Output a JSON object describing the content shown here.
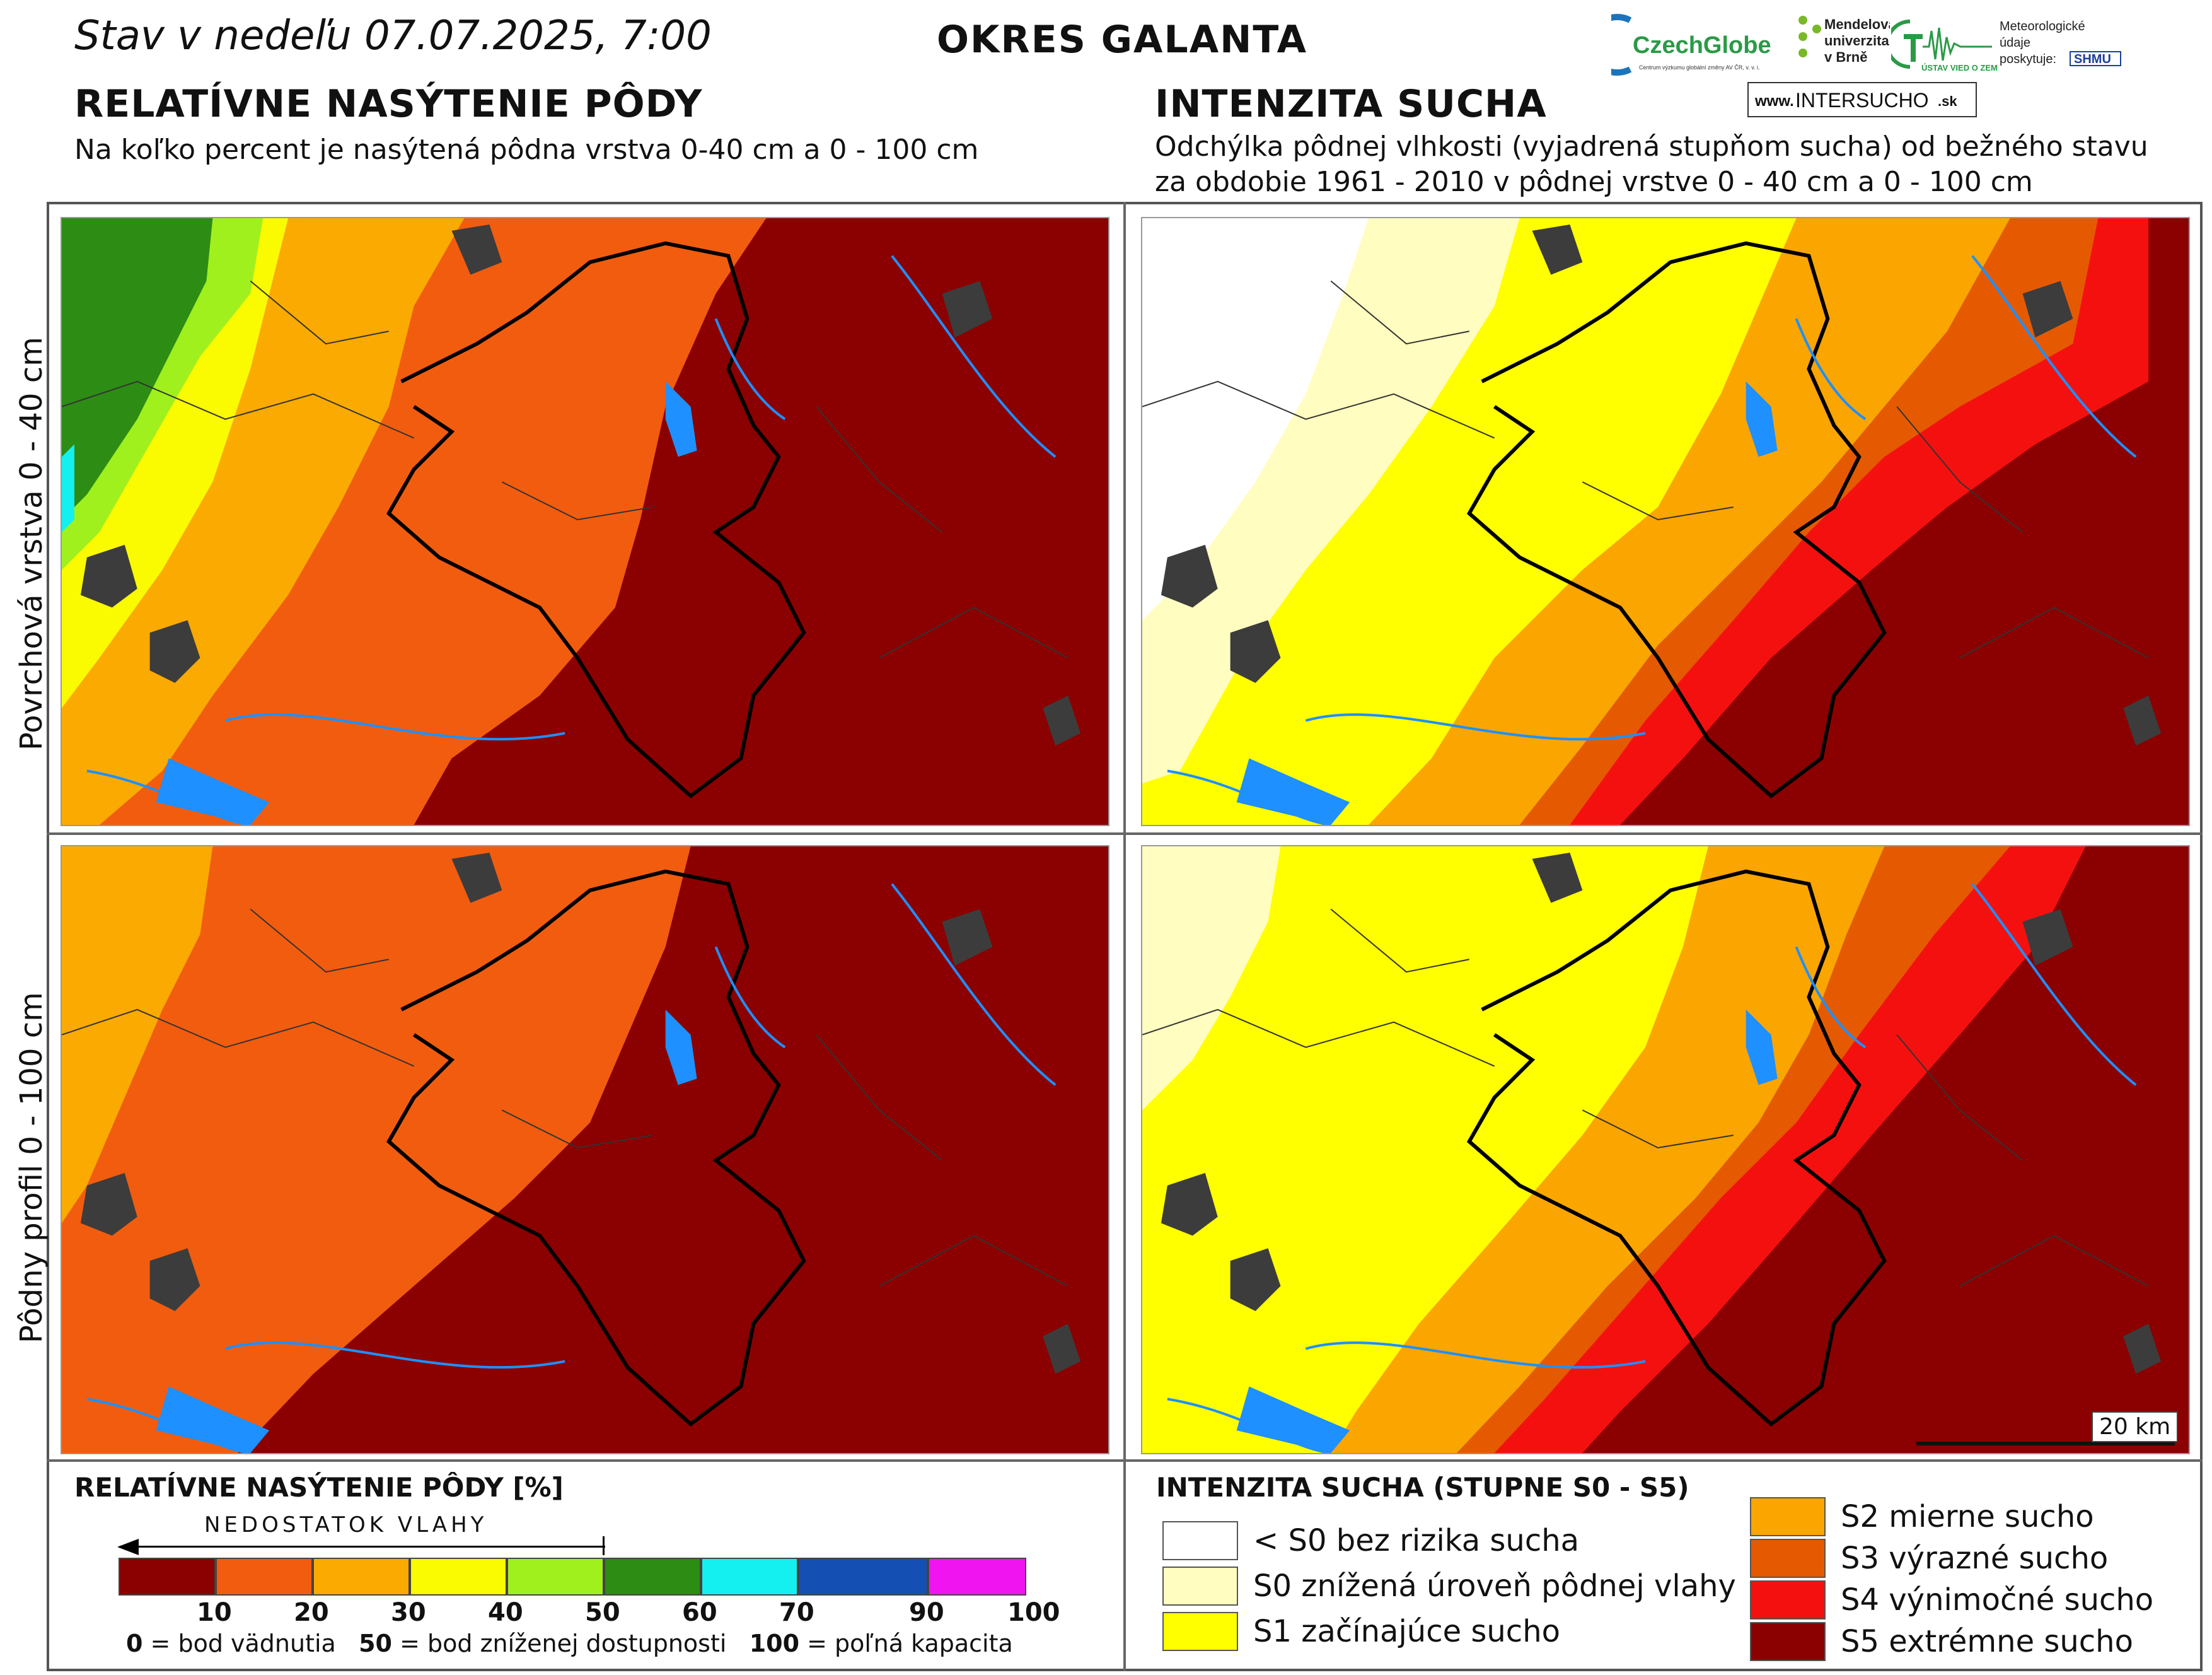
{
  "header": {
    "status_prefix": "Stav v nedeľu",
    "date_time": "07.07.2025, 7:00",
    "district": "OKRES GALANTA"
  },
  "left_section": {
    "title": "RELATÍVNE NASÝTENIE PÔDY",
    "subtitle": "Na koľko percent je nasýtená pôdna vrstva 0-40 cm a 0 - 100 cm"
  },
  "right_section": {
    "title": "INTENZITA SUCHA",
    "subtitle_line1": "Odchýlka pôdnej vlhkosti (vyjadrená stupňom sucha) od bežného stavu",
    "subtitle_line2": "za obdobie 1961 - 2010 v pôdnej vrstve 0 - 40 cm a 0 - 100 cm"
  },
  "logos": {
    "czechglobe": "CzechGlobe",
    "czechglobe_sub": "Centrum výzkumu globální změny AV ČR, v. v. i.",
    "mendel_line1": "Mendelova",
    "mendel_line2": "univerzita",
    "mendel_line3": "v Brně",
    "ustav": "ÚSTAV VIED O ZEMI",
    "meteo_line1": "Meteorologické",
    "meteo_line2": "údaje",
    "meteo_line3": "poskytuje:",
    "shmu": "SHMU",
    "website_prefix": "www.",
    "website_main": "INTERSUCHO",
    "website_suffix": ".sk"
  },
  "row_labels": {
    "top": "Povrchová vrstva 0 - 40 cm",
    "bottom": "Pôdny profil 0 - 100 cm"
  },
  "scale_bar": "20 km",
  "saturation_legend": {
    "title": "RELATÍVNE NASÝTENIE PÔDY [%]",
    "arrow_label": "NEDOSTATOK VLAHY",
    "bins": [
      {
        "color": "#8B0000"
      },
      {
        "color": "#F25C0F"
      },
      {
        "color": "#FAAA00"
      },
      {
        "color": "#FAFA00"
      },
      {
        "color": "#A0F01E"
      },
      {
        "color": "#2D8C14"
      },
      {
        "color": "#14F0F0"
      },
      {
        "color": "#1450B4"
      },
      {
        "color": "#F014F0"
      }
    ],
    "ticks": [
      "10",
      "20",
      "30",
      "40",
      "50",
      "60",
      "70",
      "90",
      "100"
    ],
    "note_0": "0",
    "note_0_text": "= bod vädnutia",
    "note_50": "50",
    "note_50_text": "= bod zníženej dostupnosti",
    "note_100": "100",
    "note_100_text": "= poľná kapacita"
  },
  "drought_legend": {
    "title": "INTENZITA SUCHA (STUPNE S0 - S5)",
    "items_left": [
      {
        "label": "< S0 bez rizika sucha",
        "color": "#FFFFFF"
      },
      {
        "label": "S0 znížená úroveň pôdnej vlahy",
        "color": "#FFFDC0"
      },
      {
        "label": "S1 začínajúce sucho",
        "color": "#FFFF00"
      }
    ],
    "items_right": [
      {
        "label": "S2 mierne sucho",
        "color": "#FAA500"
      },
      {
        "label": "S3 výrazné sucho",
        "color": "#E55A00"
      },
      {
        "label": "S4 výnimočné sucho",
        "color": "#F51010"
      },
      {
        "label": "S5 extrémne sucho",
        "color": "#8B0000"
      }
    ]
  },
  "colors": {
    "frame": "#555555",
    "water": "#1E90FF",
    "urban": "#3C3C3C",
    "border_bold": "#000000"
  }
}
